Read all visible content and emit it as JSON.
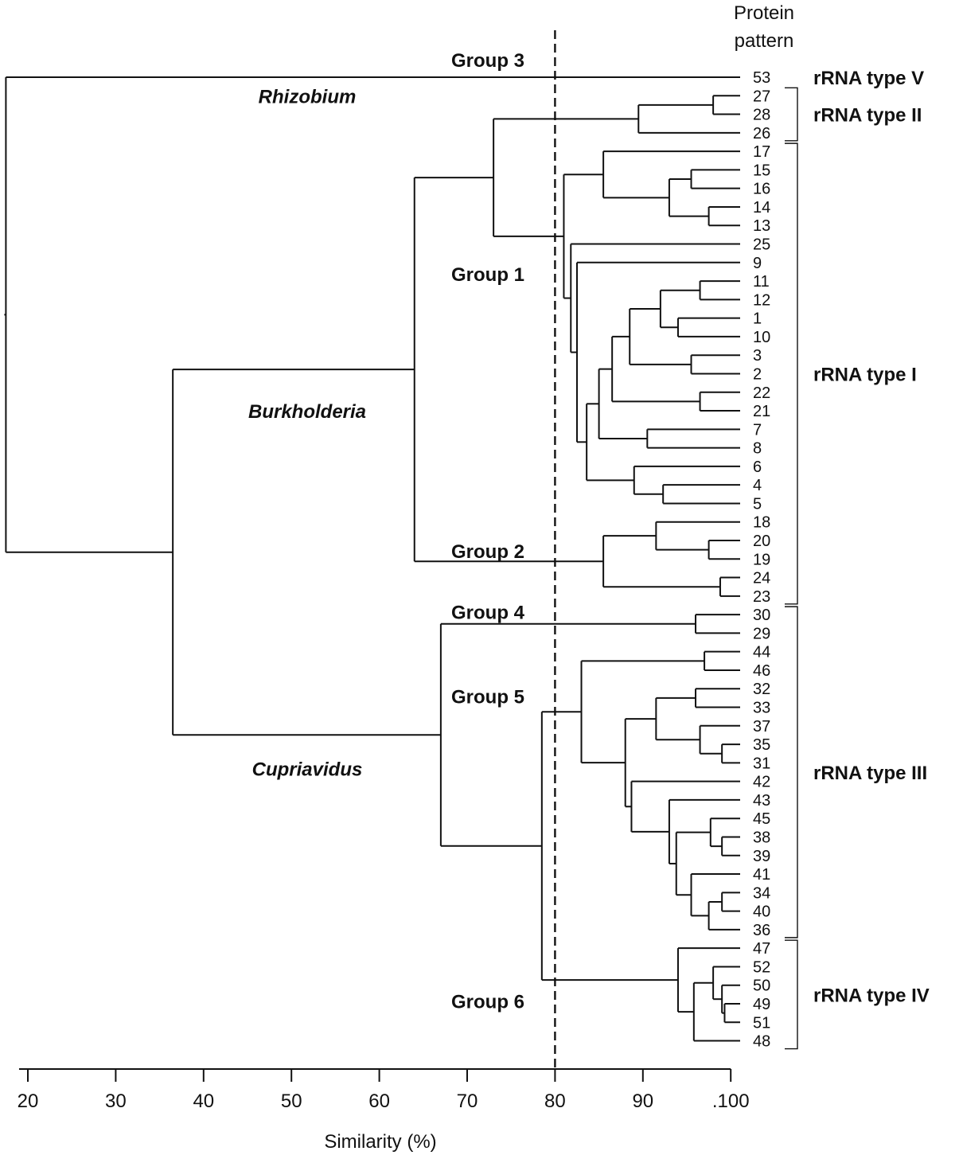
{
  "header": [
    "Protein",
    "pattern"
  ],
  "axis": {
    "label": "Similarity (%)",
    "ticks": [
      "20",
      "30",
      "40",
      "50",
      "60",
      "70",
      "80",
      "90",
      ".100"
    ],
    "tick_values": [
      20,
      30,
      40,
      50,
      60,
      70,
      80,
      90,
      100
    ],
    "range": [
      19,
      100
    ],
    "cutoff": 80
  },
  "leaves": [
    "53",
    "27",
    "28",
    "26",
    "17",
    "15",
    "16",
    "14",
    "13",
    "25",
    "9",
    "11",
    "12",
    "1",
    "10",
    "3",
    "2",
    "22",
    "21",
    "7",
    "8",
    "6",
    "4",
    "5",
    "18",
    "20",
    "19",
    "24",
    "23",
    "30",
    "29",
    "44",
    "46",
    "32",
    "33",
    "37",
    "35",
    "31",
    "42",
    "43",
    "45",
    "38",
    "39",
    "41",
    "34",
    "40",
    "36",
    "47",
    "52",
    "50",
    "49",
    "51",
    "48"
  ],
  "groups": [
    {
      "label": "Group 3",
      "row": -0.95
    },
    {
      "label": "Group 1",
      "row": 10.6
    },
    {
      "label": "Group 2",
      "row": 25.55
    },
    {
      "label": "Group 4",
      "row": 28.85
    },
    {
      "label": "Group 5",
      "row": 33.4
    },
    {
      "label": "Group 6",
      "row": 49.85
    }
  ],
  "genera": [
    {
      "label": "Rhizobium",
      "row": 1.0
    },
    {
      "label": "Burkholderia",
      "row": 18.0
    },
    {
      "label": "Cupriavidus",
      "row": 37.3
    }
  ],
  "rrna_types": [
    {
      "label": "rRNA type V",
      "from": 0,
      "to": 0
    },
    {
      "label": "rRNA type II",
      "from": 1,
      "to": 3
    },
    {
      "label": "rRNA type I",
      "from": 4,
      "to": 28
    },
    {
      "label": "rRNA type III",
      "from": 29,
      "to": 46
    },
    {
      "label": "rRNA type IV",
      "from": 47,
      "to": 52
    }
  ],
  "chart_data": {
    "type": "dendrogram",
    "xlabel": "Similarity (%)",
    "xlim": [
      19,
      100
    ],
    "cutoff_line": 80,
    "tree": {
      "s": 17.5,
      "c": [
        {
          "leaf": 0
        },
        {
          "s": 36.5,
          "c": [
            {
              "s": 64.0,
              "c": [
                {
                  "s": 73.0,
                  "c": [
                    {
                      "s": 89.5,
                      "c": [
                        {
                          "s": 98.0,
                          "c": [
                            {
                              "leaf": 1
                            },
                            {
                              "leaf": 2
                            }
                          ]
                        },
                        {
                          "leaf": 3
                        }
                      ]
                    },
                    {
                      "s": 81.0,
                      "c": [
                        {
                          "s": 85.5,
                          "c": [
                            {
                              "leaf": 4
                            },
                            {
                              "s": 93.0,
                              "c": [
                                {
                                  "s": 95.5,
                                  "c": [
                                    {
                                      "leaf": 5
                                    },
                                    {
                                      "leaf": 6
                                    }
                                  ]
                                },
                                {
                                  "s": 97.5,
                                  "c": [
                                    {
                                      "leaf": 7
                                    },
                                    {
                                      "leaf": 8
                                    }
                                  ]
                                }
                              ]
                            }
                          ]
                        },
                        {
                          "s": 81.8,
                          "c": [
                            {
                              "leaf": 9
                            },
                            {
                              "s": 82.5,
                              "c": [
                                {
                                  "leaf": 10
                                },
                                {
                                  "s": 83.6,
                                  "c": [
                                    {
                                      "s": 85.0,
                                      "c": [
                                        {
                                          "s": 86.5,
                                          "c": [
                                            {
                                              "s": 88.5,
                                              "c": [
                                                {
                                                  "s": 92.0,
                                                  "c": [
                                                    {
                                                      "s": 96.5,
                                                      "c": [
                                                        {
                                                          "leaf": 11
                                                        },
                                                        {
                                                          "leaf": 12
                                                        }
                                                      ]
                                                    },
                                                    {
                                                      "s": 94.0,
                                                      "c": [
                                                        {
                                                          "leaf": 13
                                                        },
                                                        {
                                                          "leaf": 14
                                                        }
                                                      ]
                                                    }
                                                  ]
                                                },
                                                {
                                                  "s": 95.5,
                                                  "c": [
                                                    {
                                                      "leaf": 15
                                                    },
                                                    {
                                                      "leaf": 16
                                                    }
                                                  ]
                                                }
                                              ]
                                            },
                                            {
                                              "s": 96.5,
                                              "c": [
                                                {
                                                  "leaf": 17
                                                },
                                                {
                                                  "leaf": 18
                                                }
                                              ]
                                            }
                                          ]
                                        },
                                        {
                                          "s": 90.5,
                                          "c": [
                                            {
                                              "leaf": 19
                                            },
                                            {
                                              "leaf": 20
                                            }
                                          ]
                                        }
                                      ]
                                    },
                                    {
                                      "s": 89.0,
                                      "c": [
                                        {
                                          "leaf": 21
                                        },
                                        {
                                          "s": 92.3,
                                          "c": [
                                            {
                                              "leaf": 22
                                            },
                                            {
                                              "leaf": 23
                                            }
                                          ]
                                        }
                                      ]
                                    }
                                  ]
                                }
                              ]
                            }
                          ]
                        }
                      ]
                    }
                  ]
                },
                {
                  "s": 85.5,
                  "c": [
                    {
                      "s": 91.5,
                      "c": [
                        {
                          "leaf": 24
                        },
                        {
                          "s": 97.5,
                          "c": [
                            {
                              "leaf": 25
                            },
                            {
                              "leaf": 26
                            }
                          ]
                        }
                      ]
                    },
                    {
                      "s": 98.8,
                      "c": [
                        {
                          "leaf": 27
                        },
                        {
                          "leaf": 28
                        }
                      ]
                    }
                  ]
                }
              ]
            },
            {
              "s": 67.0,
              "c": [
                {
                  "s": 96.0,
                  "c": [
                    {
                      "leaf": 29
                    },
                    {
                      "leaf": 30
                    }
                  ]
                },
                {
                  "s": 78.5,
                  "c": [
                    {
                      "s": 83.0,
                      "c": [
                        {
                          "s": 97.0,
                          "c": [
                            {
                              "leaf": 31
                            },
                            {
                              "leaf": 32
                            }
                          ]
                        },
                        {
                          "s": 88.0,
                          "c": [
                            {
                              "s": 91.5,
                              "c": [
                                {
                                  "s": 96.0,
                                  "c": [
                                    {
                                      "leaf": 33
                                    },
                                    {
                                      "leaf": 34
                                    }
                                  ]
                                },
                                {
                                  "s": 96.5,
                                  "c": [
                                    {
                                      "leaf": 35
                                    },
                                    {
                                      "s": 99.0,
                                      "c": [
                                        {
                                          "leaf": 36
                                        },
                                        {
                                          "leaf": 37
                                        }
                                      ]
                                    }
                                  ]
                                }
                              ]
                            },
                            {
                              "s": 88.7,
                              "c": [
                                {
                                  "leaf": 38
                                },
                                {
                                  "s": 93.0,
                                  "c": [
                                    {
                                      "leaf": 39
                                    },
                                    {
                                      "s": 93.8,
                                      "c": [
                                        {
                                          "s": 97.7,
                                          "c": [
                                            {
                                              "leaf": 40
                                            },
                                            {
                                              "s": 99.0,
                                              "c": [
                                                {
                                                  "leaf": 41
                                                },
                                                {
                                                  "leaf": 42
                                                }
                                              ]
                                            }
                                          ]
                                        },
                                        {
                                          "s": 95.5,
                                          "c": [
                                            {
                                              "leaf": 43
                                            },
                                            {
                                              "s": 97.5,
                                              "c": [
                                                {
                                                  "s": 99.0,
                                                  "c": [
                                                    {
                                                      "leaf": 44
                                                    },
                                                    {
                                                      "leaf": 45
                                                    }
                                                  ]
                                                },
                                                {
                                                  "leaf": 46
                                                }
                                              ]
                                            }
                                          ]
                                        }
                                      ]
                                    }
                                  ]
                                }
                              ]
                            }
                          ]
                        }
                      ]
                    },
                    {
                      "s": 94.0,
                      "c": [
                        {
                          "leaf": 47
                        },
                        {
                          "s": 95.8,
                          "c": [
                            {
                              "s": 98.0,
                              "c": [
                                {
                                  "leaf": 48
                                },
                                {
                                  "s": 99.0,
                                  "c": [
                                    {
                                      "leaf": 49
                                    },
                                    {
                                      "s": 99.3,
                                      "c": [
                                        {
                                          "leaf": 50
                                        },
                                        {
                                          "leaf": 51
                                        }
                                      ]
                                    }
                                  ]
                                }
                              ]
                            },
                            {
                              "leaf": 52
                            }
                          ]
                        }
                      ]
                    }
                  ]
                }
              ]
            }
          ]
        }
      ]
    }
  }
}
